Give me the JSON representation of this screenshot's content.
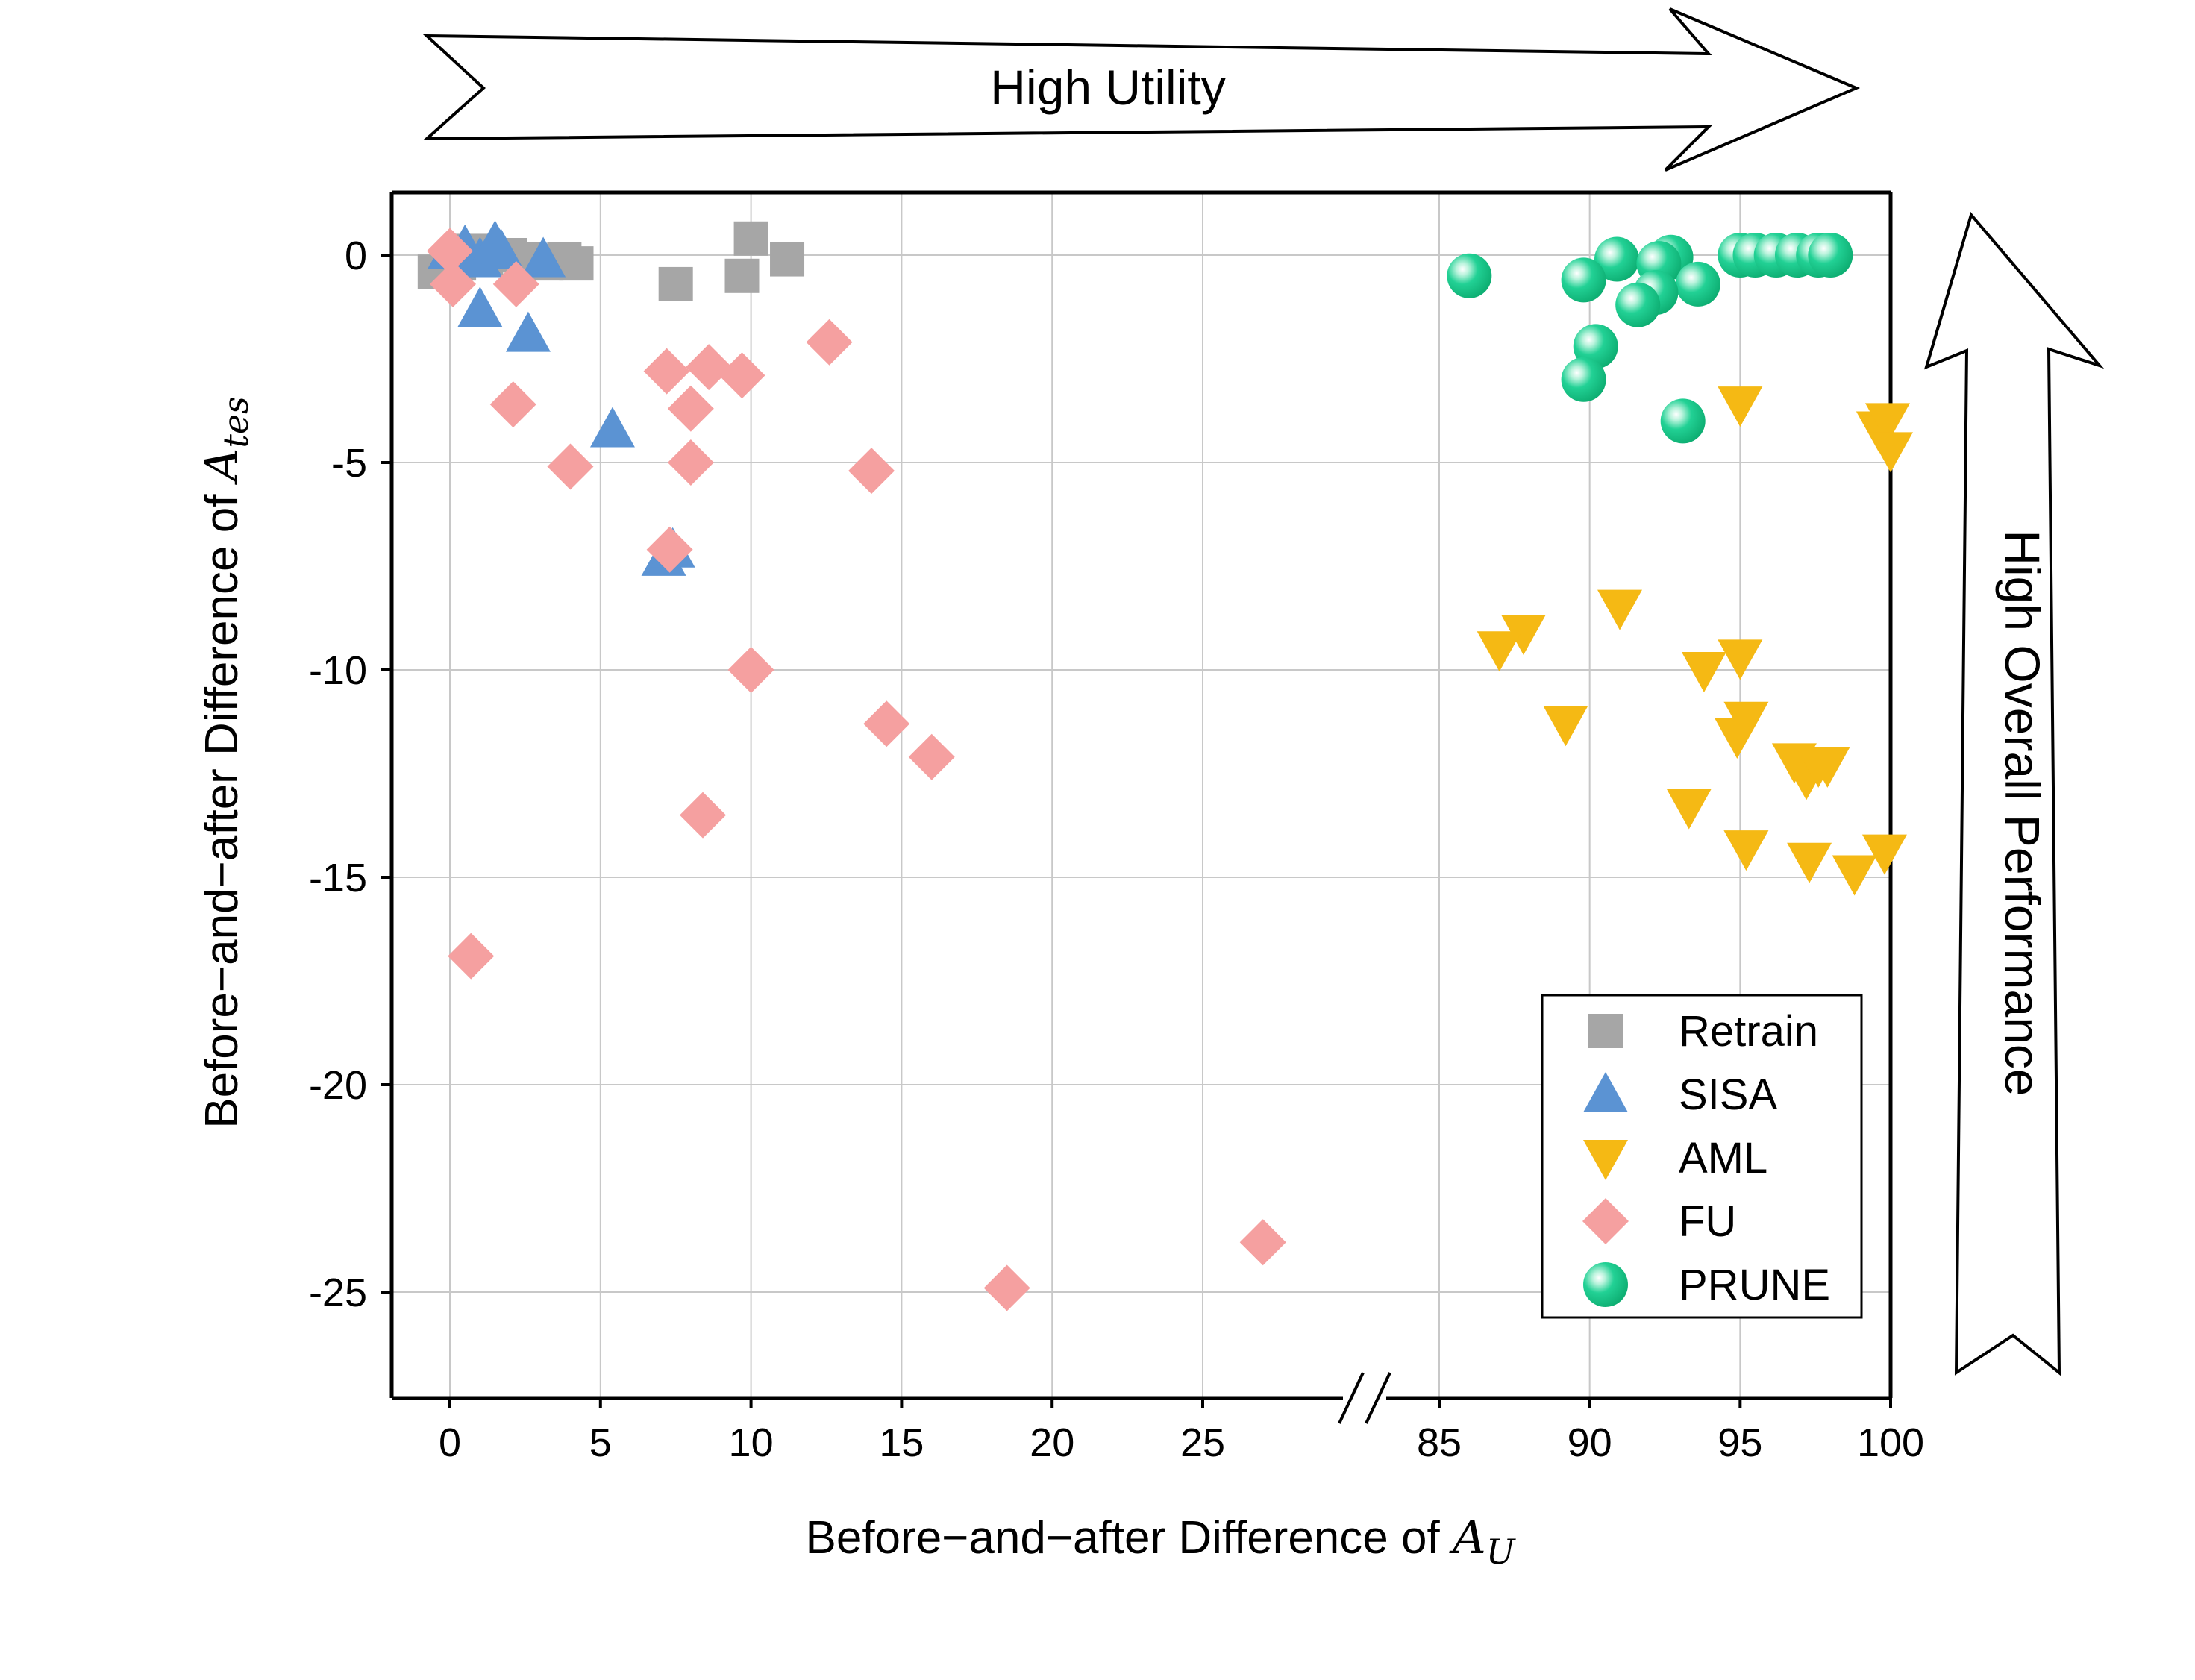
{
  "chart_data": {
    "type": "scatter",
    "title": "",
    "xlabel_prefix": "Before−and−after Difference of ",
    "xlabel_math": "A",
    "xlabel_sub": "U",
    "ylabel_prefix": "Before−and−after Difference of ",
    "ylabel_math": "A",
    "ylabel_sub": "tes",
    "x_segments": [
      {
        "range": [
          -1,
          29
        ],
        "ticks": [
          0,
          5,
          10,
          15,
          20,
          25
        ]
      },
      {
        "range": [
          85,
          100
        ],
        "ticks": [
          85,
          90,
          95,
          100
        ]
      }
    ],
    "x_broken_axis": true,
    "ylim": [
      -27.5,
      1.5
    ],
    "y_ticks": [
      0,
      -5,
      -10,
      -15,
      -20,
      -25
    ],
    "y_tick_labels": [
      "0",
      "-5",
      "-10",
      "-15",
      "-20",
      "-25"
    ],
    "x_tick_labels": [
      "0",
      "5",
      "10",
      "15",
      "20",
      "25",
      "85",
      "90",
      "95",
      "100"
    ],
    "grid": true,
    "legend_position": "bottom-right",
    "annotations": {
      "top_arrow": "High Utility",
      "right_arrow": "High Overall Performance"
    },
    "series": [
      {
        "name": "Retrain",
        "marker": "square",
        "color": "#a6a6a6",
        "points": [
          [
            -0.5,
            -0.4
          ],
          [
            0.3,
            -0.2
          ],
          [
            0.7,
            0.1
          ],
          [
            1.2,
            -0.1
          ],
          [
            2.0,
            0.0
          ],
          [
            2.6,
            -0.1
          ],
          [
            3.2,
            -0.2
          ],
          [
            3.8,
            -0.1
          ],
          [
            4.2,
            -0.2
          ],
          [
            7.5,
            -0.7
          ],
          [
            9.7,
            -0.5
          ],
          [
            10.0,
            0.4
          ],
          [
            11.2,
            -0.1
          ]
        ]
      },
      {
        "name": "SISA",
        "marker": "triangle-up",
        "color": "#5b93d3",
        "points": [
          [
            0.0,
            0.1
          ],
          [
            0.5,
            0.2
          ],
          [
            1.0,
            -0.1
          ],
          [
            1.5,
            0.3
          ],
          [
            1.7,
            0.1
          ],
          [
            3.1,
            -0.1
          ],
          [
            1.0,
            -1.3
          ],
          [
            2.6,
            -1.9
          ],
          [
            5.4,
            -4.2
          ],
          [
            7.1,
            -7.3
          ],
          [
            7.4,
            -7.1
          ]
        ]
      },
      {
        "name": "AML",
        "marker": "triangle-down",
        "color": "#f5b914",
        "points": [
          [
            95.0,
            -3.6
          ],
          [
            99.6,
            -4.2
          ],
          [
            99.9,
            -4.0
          ],
          [
            100.0,
            -4.7
          ],
          [
            91.0,
            -8.5
          ],
          [
            87.8,
            -9.1
          ],
          [
            87.0,
            -9.5
          ],
          [
            89.2,
            -11.3
          ],
          [
            93.8,
            -10.0
          ],
          [
            95.0,
            -9.7
          ],
          [
            95.2,
            -11.2
          ],
          [
            94.9,
            -11.6
          ],
          [
            96.8,
            -12.2
          ],
          [
            97.2,
            -12.6
          ],
          [
            97.6,
            -12.3
          ],
          [
            97.9,
            -12.3
          ],
          [
            93.3,
            -13.3
          ],
          [
            95.2,
            -14.3
          ],
          [
            97.3,
            -14.6
          ],
          [
            98.8,
            -14.9
          ],
          [
            99.8,
            -14.4
          ]
        ]
      },
      {
        "name": "FU",
        "marker": "diamond",
        "color": "#f5a0a0",
        "points": [
          [
            0.0,
            0.1
          ],
          [
            0.1,
            -0.7
          ],
          [
            2.2,
            -0.7
          ],
          [
            2.1,
            -3.6
          ],
          [
            4.0,
            -5.1
          ],
          [
            7.2,
            -2.8
          ],
          [
            8.6,
            -2.7
          ],
          [
            9.7,
            -2.9
          ],
          [
            8.0,
            -3.7
          ],
          [
            8.0,
            -5.0
          ],
          [
            7.3,
            -7.1
          ],
          [
            12.6,
            -2.1
          ],
          [
            14.0,
            -5.2
          ],
          [
            10.0,
            -10.0
          ],
          [
            14.5,
            -11.3
          ],
          [
            16.0,
            -12.1
          ],
          [
            8.4,
            -13.5
          ],
          [
            0.7,
            -16.9
          ],
          [
            18.5,
            -24.9
          ],
          [
            27.0,
            -23.8
          ]
        ]
      },
      {
        "name": "PRUNE",
        "marker": "sphere",
        "color": "#1cc98a",
        "points": [
          [
            86.0,
            -0.5
          ],
          [
            90.9,
            -0.1
          ],
          [
            92.7,
            -0.05
          ],
          [
            92.3,
            -0.2
          ],
          [
            89.8,
            -0.6
          ],
          [
            95.0,
            0.0
          ],
          [
            95.5,
            0.0
          ],
          [
            96.2,
            0.0
          ],
          [
            96.9,
            0.0
          ],
          [
            97.6,
            0.0
          ],
          [
            98.0,
            0.0
          ],
          [
            93.6,
            -0.7
          ],
          [
            92.2,
            -0.9
          ],
          [
            91.6,
            -1.2
          ],
          [
            90.2,
            -2.2
          ],
          [
            89.8,
            -3.0
          ],
          [
            93.1,
            -4.0
          ]
        ]
      }
    ]
  }
}
